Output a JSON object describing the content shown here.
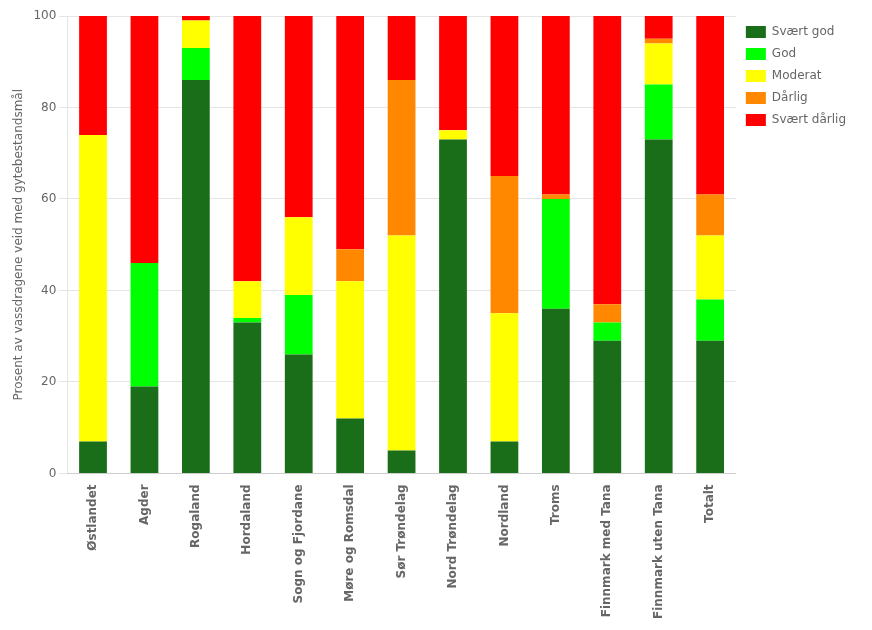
{
  "chart_data": {
    "type": "bar",
    "stacked": true,
    "categories": [
      "Østlandet",
      "Agder",
      "Rogaland",
      "Hordaland",
      "Sogn og Fjordane",
      "Møre og Romsdal",
      "Sør Trøndelag",
      "Nord Trøndelag",
      "Nordland",
      "Troms",
      "Finnmark med Tana",
      "Finnmark uten Tana",
      "Totalt"
    ],
    "series": [
      {
        "name": "Svært god",
        "color": "#1a6e1a",
        "values": [
          7,
          19,
          86,
          33,
          26,
          12,
          5,
          73,
          7,
          36,
          29,
          73,
          29
        ]
      },
      {
        "name": "God",
        "color": "#00ff00",
        "values": [
          0,
          27,
          7,
          1,
          13,
          0,
          0,
          0,
          0,
          24,
          4,
          12,
          9
        ]
      },
      {
        "name": "Moderat",
        "color": "#ffff00",
        "values": [
          67,
          0,
          6,
          8,
          17,
          30,
          47,
          2,
          28,
          0,
          0,
          9,
          14
        ]
      },
      {
        "name": "Dårlig",
        "color": "#ff8800",
        "values": [
          0,
          0,
          0,
          0,
          0,
          7,
          34,
          0,
          30,
          1,
          4,
          1,
          9
        ]
      },
      {
        "name": "Svært dårlig",
        "color": "#ff0000",
        "values": [
          26,
          54,
          1,
          58,
          44,
          51,
          14,
          25,
          35,
          39,
          63,
          5,
          39
        ]
      }
    ],
    "ylabel": "Prosent av vassdragene veid med gytebestandsmål",
    "ylim": [
      0,
      100
    ],
    "yticks": [
      0,
      20,
      40,
      60,
      80,
      100
    ],
    "grid": true,
    "legend": "right"
  }
}
